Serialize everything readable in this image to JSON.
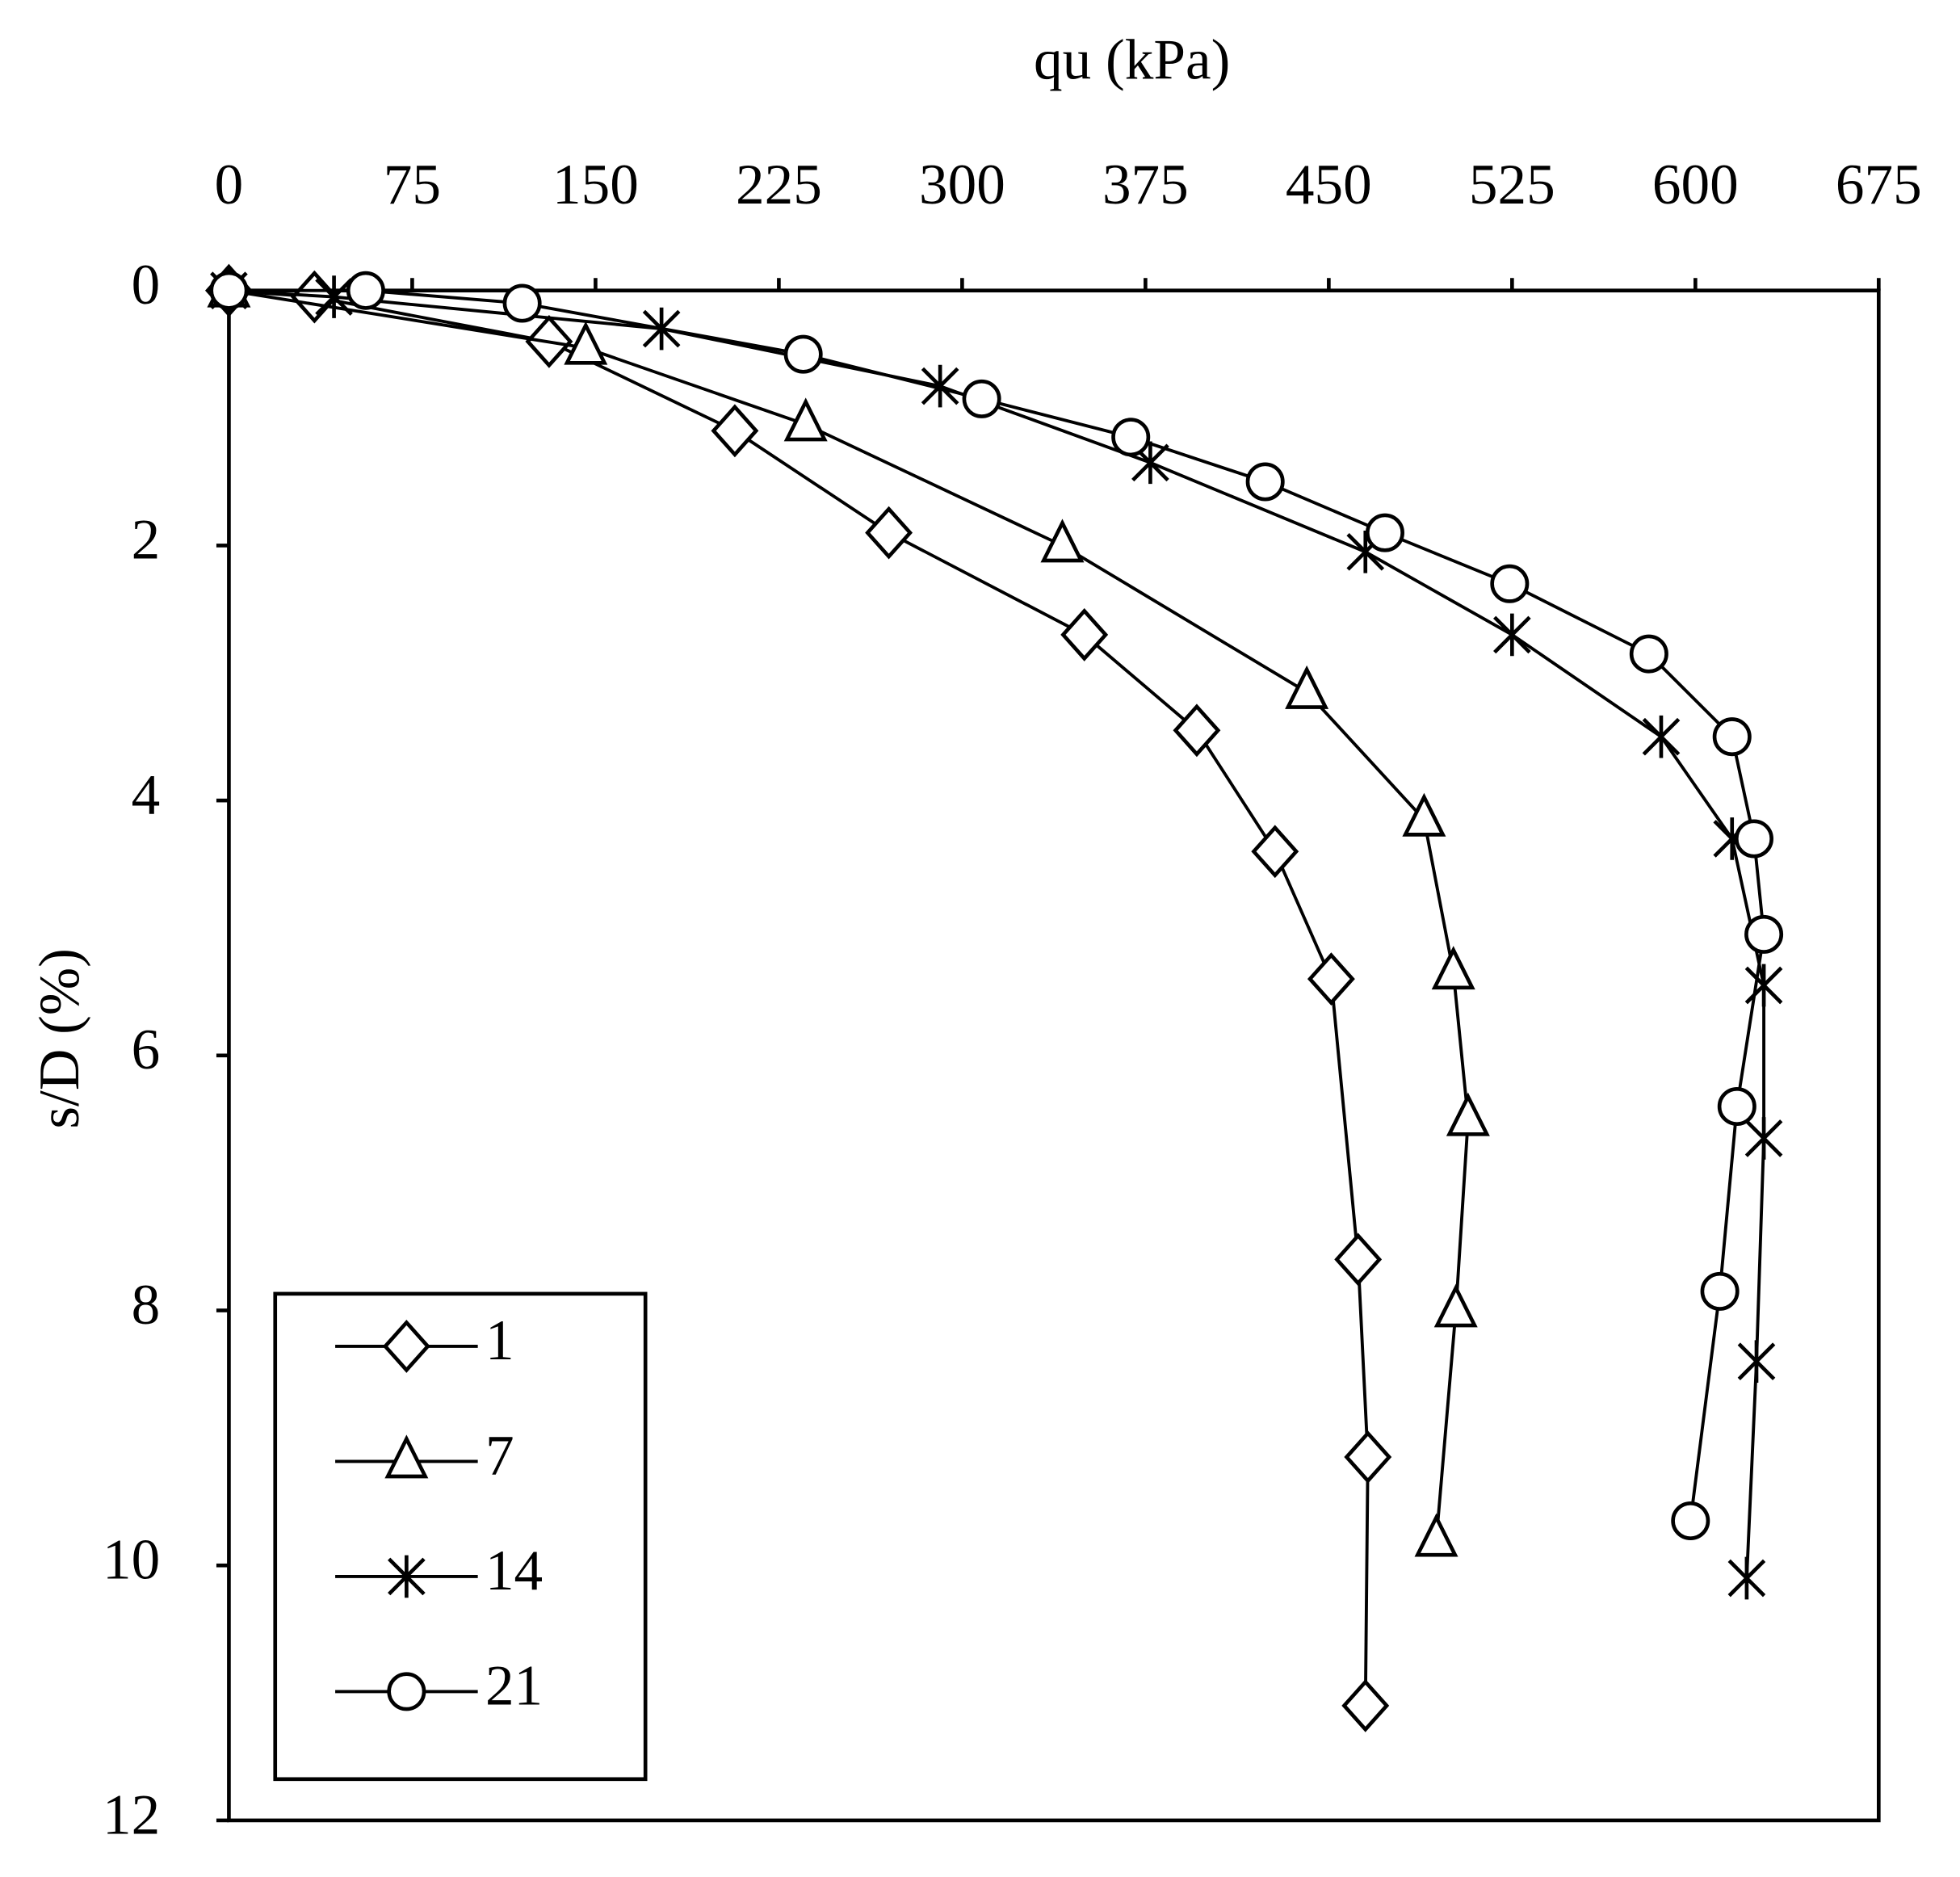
{
  "chart_data": {
    "type": "line",
    "x_label": "qu (kPa)",
    "y_label": "s/D (%)",
    "xlim": [
      0,
      675
    ],
    "xticks": [
      0,
      75,
      150,
      225,
      300,
      375,
      450,
      525,
      600,
      675
    ],
    "x_axis_position": "top",
    "ylim": [
      0,
      12
    ],
    "yticks": [
      0,
      2,
      4,
      6,
      8,
      10,
      12
    ],
    "y_inverted": true,
    "legend": "bottom-left",
    "series": [
      {
        "name": "1",
        "color": "#000000",
        "marker": "diamond",
        "x": [
          0,
          35,
          131,
          207,
          270,
          350,
          396,
          428,
          451,
          462,
          466,
          465
        ],
        "values": [
          0,
          0.05,
          0.4,
          1.1,
          1.9,
          2.7,
          3.45,
          4.4,
          5.4,
          7.6,
          9.15,
          11.1
        ]
      },
      {
        "name": "7",
        "color": "#000000",
        "marker": "triangle",
        "x": [
          0,
          146,
          236,
          341,
          441,
          489,
          501,
          507,
          502,
          494
        ],
        "values": [
          0,
          0.45,
          1.05,
          2.0,
          3.15,
          4.15,
          5.35,
          6.5,
          8.0,
          9.8
        ]
      },
      {
        "name": "14",
        "color": "#000000",
        "marker": "star",
        "x": [
          0,
          43,
          177,
          291,
          377,
          465,
          525,
          586,
          615,
          628,
          628,
          625,
          621
        ],
        "values": [
          0,
          0.05,
          0.3,
          0.75,
          1.35,
          2.05,
          2.7,
          3.5,
          4.3,
          5.45,
          6.65,
          8.4,
          10.1
        ]
      },
      {
        "name": "21",
        "color": "#000000",
        "marker": "circle",
        "x": [
          0,
          56,
          120,
          235,
          308,
          369,
          424,
          473,
          524,
          581,
          615,
          624,
          628,
          617,
          610,
          598
        ],
        "values": [
          0,
          0,
          0.1,
          0.5,
          0.85,
          1.15,
          1.5,
          1.9,
          2.3,
          2.85,
          3.5,
          4.3,
          5.05,
          6.4,
          7.85,
          9.65
        ]
      }
    ]
  }
}
